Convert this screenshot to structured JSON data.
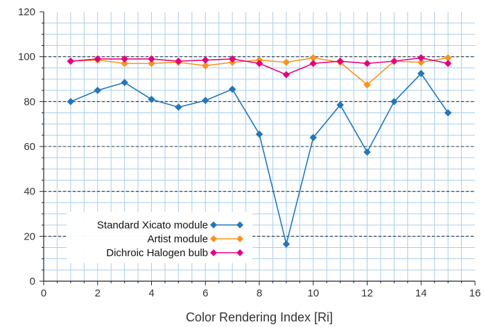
{
  "chart_data": {
    "type": "line",
    "title": "",
    "xlabel": "Color Rendering Index [Ri]",
    "ylabel": "",
    "xlim": [
      0,
      16
    ],
    "ylim": [
      0,
      120
    ],
    "x_ticks": [
      0,
      2,
      4,
      6,
      8,
      10,
      12,
      14,
      16
    ],
    "y_ticks": [
      0,
      20,
      40,
      60,
      80,
      100,
      120
    ],
    "x_minor_step": 0.5,
    "y_minor_step": 5,
    "dashed_gridlines_y": [
      20,
      40,
      60,
      80,
      100
    ],
    "grid": true,
    "legend_position": "bottom-left",
    "x": [
      1,
      2,
      3,
      4,
      5,
      6,
      7,
      8,
      9,
      10,
      11,
      12,
      13,
      14,
      15
    ],
    "series": [
      {
        "name": "Standard Xicato module",
        "color": "#2377b9",
        "marker": "diamond",
        "values": [
          80,
          85,
          88.5,
          81,
          77.5,
          80.5,
          85.5,
          65.5,
          16.5,
          64,
          78.5,
          57.5,
          80,
          92.5,
          75
        ]
      },
      {
        "name": "Artist module",
        "color": "#f7941d",
        "marker": "diamond",
        "values": [
          98,
          98.5,
          97,
          97,
          97.5,
          96,
          97.5,
          98.5,
          97.5,
          99.5,
          97.5,
          87.5,
          98,
          97.5,
          99.5
        ]
      },
      {
        "name": "Dichroic Halogen bulb",
        "color": "#e6007e",
        "marker": "diamond",
        "values": [
          98,
          99,
          99,
          99,
          98,
          98.5,
          99,
          97,
          92,
          97,
          98,
          97,
          98,
          99.5,
          97
        ]
      }
    ]
  }
}
